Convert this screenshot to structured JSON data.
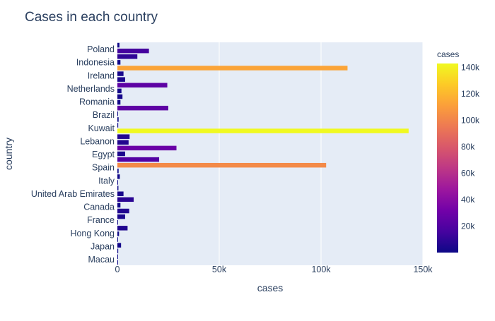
{
  "chart_data": {
    "type": "bar",
    "orientation": "horizontal",
    "title": "Cases in each country",
    "xlabel": "cases",
    "ylabel": "country",
    "xlim": [
      0,
      150000
    ],
    "x_ticks": [
      0,
      50000,
      100000,
      150000
    ],
    "x_tick_labels": [
      "0",
      "50k",
      "100k",
      "150k"
    ],
    "grid": true,
    "y_tick_labels": [
      "Poland",
      "Indonesia",
      "Ireland",
      "Netherlands",
      "Romania",
      "Brazil",
      "Kuwait",
      "Lebanon",
      "Egypt",
      "Spain",
      "Italy",
      "United Arab Emirates",
      "Canada",
      "France",
      "Hong Kong",
      "Japan",
      "Macau"
    ],
    "bars": [
      {
        "index": 0,
        "value": 300
      },
      {
        "index": 1,
        "value": 200
      },
      {
        "index": 2,
        "value": 400
      },
      {
        "index": 3,
        "value": 1800
      },
      {
        "index": 4,
        "value": 200
      },
      {
        "index": 5,
        "value": 800
      },
      {
        "index": 6,
        "value": 5000
      },
      {
        "index": 7,
        "value": 200
      },
      {
        "index": 8,
        "value": 3800
      },
      {
        "index": 9,
        "value": 5800
      },
      {
        "index": 10,
        "value": 1500
      },
      {
        "index": 11,
        "value": 8000
      },
      {
        "index": 12,
        "value": 3000
      },
      {
        "index": 13,
        "value": 500
      },
      {
        "index": 14,
        "value": 300
      },
      {
        "index": 15,
        "value": 1200
      },
      {
        "index": 16,
        "value": 600
      },
      {
        "index": 17,
        "value": 102500
      },
      {
        "index": 18,
        "value": 20500
      },
      {
        "index": 19,
        "value": 3800
      },
      {
        "index": 20,
        "value": 29000
      },
      {
        "index": 21,
        "value": 5500
      },
      {
        "index": 22,
        "value": 6000
      },
      {
        "index": 23,
        "value": 143000
      },
      {
        "index": 24,
        "value": 400
      },
      {
        "index": 25,
        "value": 600
      },
      {
        "index": 26,
        "value": 200
      },
      {
        "index": 27,
        "value": 25000
      },
      {
        "index": 28,
        "value": 1500
      },
      {
        "index": 29,
        "value": 2500
      },
      {
        "index": 30,
        "value": 2000
      },
      {
        "index": 31,
        "value": 24500
      },
      {
        "index": 32,
        "value": 3800
      },
      {
        "index": 33,
        "value": 3000
      },
      {
        "index": 34,
        "value": 113000
      },
      {
        "index": 35,
        "value": 1500
      },
      {
        "index": 36,
        "value": 9800
      },
      {
        "index": 37,
        "value": 15500
      },
      {
        "index": 38,
        "value": 1000
      }
    ],
    "colorbar": {
      "title": "cases",
      "range": [
        0,
        143000
      ],
      "ticks": [
        20000,
        40000,
        60000,
        80000,
        100000,
        120000,
        140000
      ],
      "tick_labels": [
        "20k",
        "40k",
        "60k",
        "80k",
        "100k",
        "120k",
        "140k"
      ],
      "colorscale": [
        "#0d0887",
        "#46039f",
        "#7201a8",
        "#9c179e",
        "#bd3786",
        "#d8576b",
        "#ed7953",
        "#fb9f3a",
        "#fdca26",
        "#f0f921"
      ]
    },
    "plot_background": "#e5ecf6",
    "text_color": "#2a3f5f"
  }
}
